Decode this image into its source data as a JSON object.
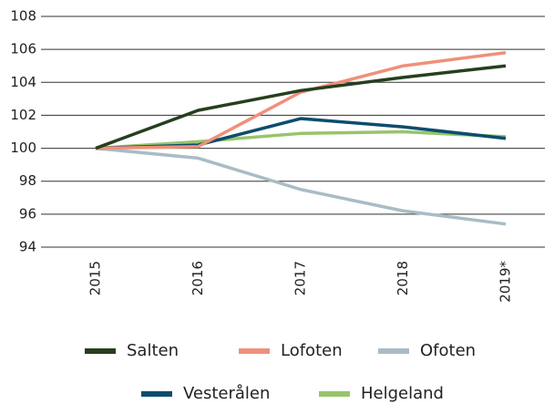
{
  "chart_data": {
    "type": "line",
    "categories": [
      "2015",
      "2016",
      "2017",
      "2018",
      "2019*"
    ],
    "series": [
      {
        "name": "Salten",
        "color": "#263f1e",
        "values": [
          100,
          102.3,
          103.5,
          104.3,
          105
        ]
      },
      {
        "name": "Lofoten",
        "color": "#f0907a",
        "values": [
          100,
          100.1,
          103.4,
          105,
          105.8
        ]
      },
      {
        "name": "Ofoten",
        "color": "#a9bcc6",
        "values": [
          100,
          99.4,
          97.5,
          96.2,
          95.4
        ]
      },
      {
        "name": "Vesterålen",
        "color": "#0b4d6e",
        "values": [
          100,
          100.2,
          101.8,
          101.3,
          100.6
        ]
      },
      {
        "name": "Helgeland",
        "color": "#98c46a",
        "values": [
          100,
          100.4,
          100.9,
          101,
          100.7
        ]
      }
    ],
    "ylim": [
      94,
      108
    ],
    "yticks": [
      94,
      96,
      98,
      100,
      102,
      104,
      106,
      108
    ],
    "grid": true
  }
}
